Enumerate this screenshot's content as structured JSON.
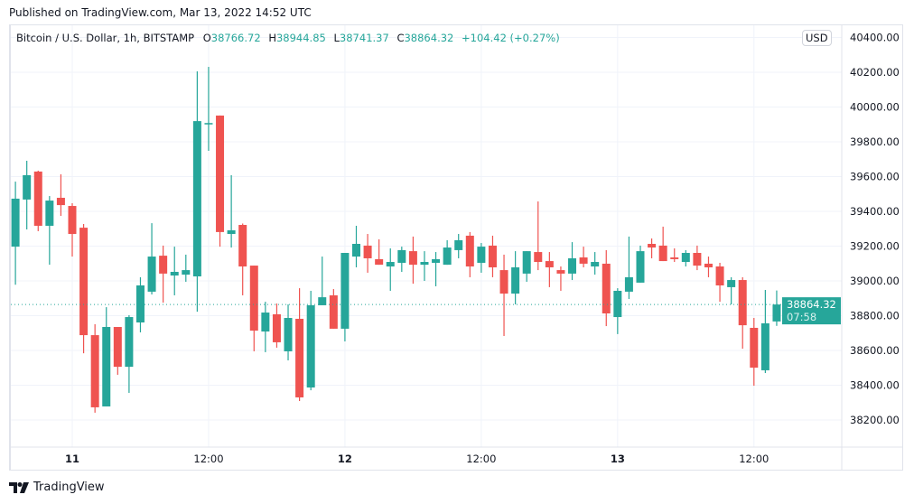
{
  "published": "Published on TradingView.com, Mar 13, 2022 14:52 UTC",
  "legend": {
    "symbol": "Bitcoin / U.S. Dollar, 1h, BITSTAMP",
    "o_label": "O",
    "o": "38766.72",
    "h_label": "H",
    "h": "38944.85",
    "l_label": "L",
    "l": "38741.37",
    "c_label": "C",
    "c": "38864.32",
    "change": "+104.42 (+0.27%)"
  },
  "currency_badge": "USD",
  "brand": "TradingView",
  "last_price": {
    "value": "38864.32",
    "countdown": "07:58"
  },
  "colors": {
    "up": "#26a69a",
    "down": "#ef5350",
    "grid": "#f0f3fa",
    "axis_border": "#e0e3eb"
  },
  "chart_data": {
    "type": "candlestick",
    "interval": "1h",
    "y_ticks": [
      "40400.00",
      "40200.00",
      "40000.00",
      "39800.00",
      "39600.00",
      "39400.00",
      "39200.00",
      "39000.00",
      "38800.00",
      "38600.00",
      "38400.00",
      "38200.00"
    ],
    "x_ticks": [
      {
        "label": "11",
        "time": "2022-03-11 00:00",
        "bold": true
      },
      {
        "label": "12:00",
        "time": "2022-03-11 12:00",
        "bold": false
      },
      {
        "label": "12",
        "time": "2022-03-12 00:00",
        "bold": true
      },
      {
        "label": "12:00",
        "time": "2022-03-12 12:00",
        "bold": false
      },
      {
        "label": "13",
        "time": "2022-03-13 00:00",
        "bold": true
      },
      {
        "label": "12:00",
        "time": "2022-03-13 12:00",
        "bold": false
      }
    ],
    "ylim": [
      38040,
      40480
    ],
    "grid": true,
    "candles_fields": [
      "time",
      "open",
      "high",
      "low",
      "close"
    ],
    "candles": [
      [
        "2022-03-10 19:00",
        39197,
        39571,
        38978,
        39473
      ],
      [
        "2022-03-10 20:00",
        39468,
        39691,
        39296,
        39608
      ],
      [
        "2022-03-10 21:00",
        39629,
        39634,
        39286,
        39317
      ],
      [
        "2022-03-10 22:00",
        39317,
        39488,
        39093,
        39462
      ],
      [
        "2022-03-10 23:00",
        39478,
        39613,
        39374,
        39436
      ],
      [
        "2022-03-11 00:00",
        39431,
        39447,
        39140,
        39270
      ],
      [
        "2022-03-11 01:00",
        39306,
        39327,
        38584,
        38688
      ],
      [
        "2022-03-11 02:00",
        38688,
        38751,
        38242,
        38273
      ],
      [
        "2022-03-11 03:00",
        38278,
        38849,
        38278,
        38735
      ],
      [
        "2022-03-11 04:00",
        38735,
        38735,
        38460,
        38506
      ],
      [
        "2022-03-11 05:00",
        38506,
        38803,
        38356,
        38792
      ],
      [
        "2022-03-11 06:00",
        38761,
        39021,
        38704,
        38974
      ],
      [
        "2022-03-11 07:00",
        38938,
        39332,
        38922,
        39140
      ],
      [
        "2022-03-11 08:00",
        39145,
        39203,
        38875,
        39042
      ],
      [
        "2022-03-11 09:00",
        39031,
        39197,
        38917,
        39052
      ],
      [
        "2022-03-11 10:00",
        39036,
        39151,
        38995,
        39062
      ],
      [
        "2022-03-11 11:00",
        39026,
        40205,
        38823,
        39919
      ],
      [
        "2022-03-11 12:00",
        39900,
        40231,
        39748,
        39908
      ],
      [
        "2022-03-11 13:00",
        39951,
        39951,
        39197,
        39281
      ],
      [
        "2022-03-11 14:00",
        39270,
        39608,
        39192,
        39291
      ],
      [
        "2022-03-11 15:00",
        39322,
        39330,
        38917,
        39083
      ],
      [
        "2022-03-11 16:00",
        39088,
        39088,
        38595,
        38714
      ],
      [
        "2022-03-11 17:00",
        38709,
        38880,
        38590,
        38818
      ],
      [
        "2022-03-11 18:00",
        38808,
        38870,
        38616,
        38647
      ],
      [
        "2022-03-11 19:00",
        38595,
        38865,
        38543,
        38787
      ],
      [
        "2022-03-11 20:00",
        38782,
        38958,
        38309,
        38330
      ],
      [
        "2022-03-11 21:00",
        38387,
        38943,
        38371,
        38860
      ],
      [
        "2022-03-11 22:00",
        38860,
        39140,
        38860,
        38906
      ],
      [
        "2022-03-11 23:00",
        38917,
        38953,
        38725,
        38725
      ],
      [
        "2022-03-12 00:00",
        38725,
        39161,
        38652,
        39161
      ],
      [
        "2022-03-12 01:00",
        39140,
        39317,
        39078,
        39213
      ],
      [
        "2022-03-12 02:00",
        39203,
        39270,
        39047,
        39130
      ],
      [
        "2022-03-12 03:00",
        39125,
        39239,
        39093,
        39093
      ],
      [
        "2022-03-12 04:00",
        39083,
        39187,
        38943,
        39109
      ],
      [
        "2022-03-12 05:00",
        39104,
        39197,
        39052,
        39177
      ],
      [
        "2022-03-12 06:00",
        39171,
        39255,
        38984,
        39093
      ],
      [
        "2022-03-12 07:00",
        39093,
        39171,
        39000,
        39109
      ],
      [
        "2022-03-12 08:00",
        39104,
        39166,
        38969,
        39125
      ],
      [
        "2022-03-12 09:00",
        39093,
        39234,
        39093,
        39192
      ],
      [
        "2022-03-12 10:00",
        39177,
        39270,
        39130,
        39234
      ],
      [
        "2022-03-12 11:00",
        39260,
        39281,
        39021,
        39083
      ],
      [
        "2022-03-12 12:00",
        39104,
        39218,
        39047,
        39197
      ],
      [
        "2022-03-12 13:00",
        39203,
        39260,
        39021,
        39078
      ],
      [
        "2022-03-12 14:00",
        39062,
        39151,
        38683,
        38927
      ],
      [
        "2022-03-12 15:00",
        38927,
        39171,
        38865,
        39078
      ],
      [
        "2022-03-12 16:00",
        39042,
        39171,
        38995,
        39171
      ],
      [
        "2022-03-12 17:00",
        39166,
        39457,
        39062,
        39109
      ],
      [
        "2022-03-12 18:00",
        39114,
        39166,
        38964,
        39078
      ],
      [
        "2022-03-12 19:00",
        39062,
        39083,
        38943,
        39042
      ],
      [
        "2022-03-12 20:00",
        39042,
        39223,
        39005,
        39130
      ],
      [
        "2022-03-12 21:00",
        39135,
        39197,
        39078,
        39099
      ],
      [
        "2022-03-12 22:00",
        39083,
        39166,
        39036,
        39109
      ],
      [
        "2022-03-12 23:00",
        39099,
        39177,
        38740,
        38813
      ],
      [
        "2022-03-13 00:00",
        38792,
        38958,
        38694,
        38943
      ],
      [
        "2022-03-13 01:00",
        38938,
        39255,
        38896,
        39021
      ],
      [
        "2022-03-13 02:00",
        38990,
        39203,
        38990,
        39171
      ],
      [
        "2022-03-13 03:00",
        39213,
        39244,
        39130,
        39192
      ],
      [
        "2022-03-13 04:00",
        39203,
        39312,
        39114,
        39114
      ],
      [
        "2022-03-13 05:00",
        39135,
        39187,
        39109,
        39125
      ],
      [
        "2022-03-13 06:00",
        39109,
        39177,
        39083,
        39161
      ],
      [
        "2022-03-13 07:00",
        39161,
        39203,
        39062,
        39088
      ],
      [
        "2022-03-13 08:00",
        39099,
        39140,
        39021,
        39078
      ],
      [
        "2022-03-13 09:00",
        39083,
        39104,
        38880,
        38974
      ],
      [
        "2022-03-13 10:00",
        38964,
        39021,
        38865,
        39005
      ],
      [
        "2022-03-13 11:00",
        39005,
        39021,
        38610,
        38745
      ],
      [
        "2022-03-13 12:00",
        38730,
        38787,
        38397,
        38501
      ],
      [
        "2022-03-13 13:00",
        38486,
        38948,
        38470,
        38756
      ],
      [
        "2022-03-13 14:00",
        38766.72,
        38944.85,
        38741.37,
        38864.32
      ]
    ]
  }
}
